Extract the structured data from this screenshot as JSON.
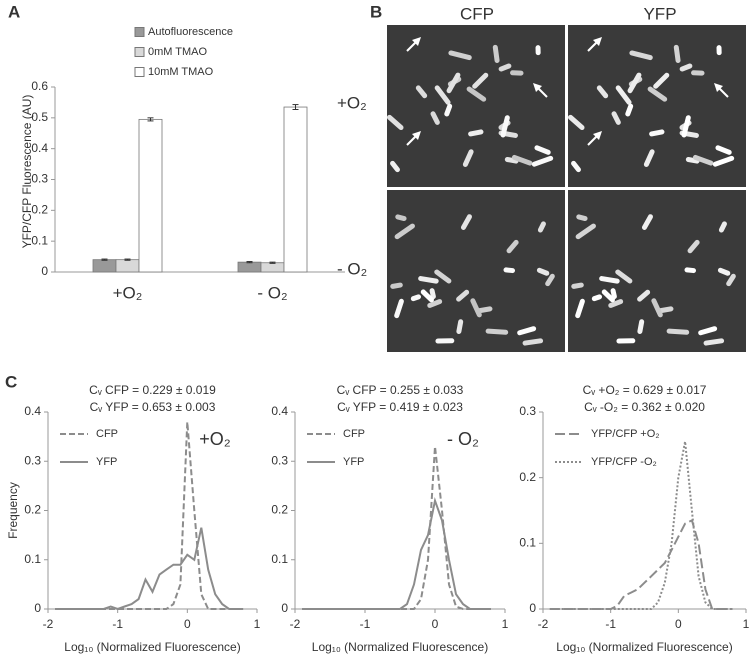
{
  "panel_labels": [
    "A",
    "B",
    "C"
  ],
  "micrographs": {
    "columns": [
      "CFP",
      "YFP"
    ],
    "rows": [
      "+O₂",
      "- O₂"
    ]
  },
  "chart_data": [
    {
      "type": "bar",
      "ylabel": "YFP/CFP Fluorescence (AU)",
      "categories": [
        "+O₂",
        "- O₂"
      ],
      "series": [
        {
          "name": "Autofluorescence",
          "color": "#999999",
          "values": [
            0.04,
            0.032
          ],
          "errors": [
            0.002,
            0.002
          ]
        },
        {
          "name": "0mM TMAO",
          "color": "#d9d9d9",
          "values": [
            0.04,
            0.03
          ],
          "errors": [
            0.002,
            0.002
          ]
        },
        {
          "name": "10mM TMAO",
          "color": "#ffffff",
          "values": [
            0.495,
            0.535
          ],
          "errors": [
            0.005,
            0.008
          ]
        }
      ],
      "ylim": [
        0,
        0.6
      ],
      "yticks": [
        0,
        0.1,
        0.2,
        0.3,
        0.4,
        0.5,
        0.6
      ]
    },
    {
      "type": "line",
      "annotations": [
        "Cᵥ CFP = 0.229 ± 0.019",
        "Cᵥ YFP = 0.653 ± 0.003"
      ],
      "label": "+O₂",
      "ylabel": "Frequency",
      "xlabel": "Log₁₀ (Normalized Fluorescence)",
      "x": [
        -1.9,
        -1.8,
        -1.7,
        -1.6,
        -1.5,
        -1.4,
        -1.3,
        -1.2,
        -1.1,
        -1,
        -0.9,
        -0.8,
        -0.7,
        -0.6,
        -0.5,
        -0.4,
        -0.3,
        -0.2,
        -0.1,
        0,
        0.1,
        0.2,
        0.3,
        0.4,
        0.5,
        0.6,
        0.7,
        0.8
      ],
      "series": [
        {
          "name": "CFP",
          "color": "#8c8c8c",
          "dash": "dashed",
          "values": [
            0,
            0,
            0,
            0,
            0,
            0,
            0,
            0,
            0,
            0,
            0,
            0,
            0,
            0,
            0,
            0,
            0,
            0.01,
            0.05,
            0.38,
            0.2,
            0.03,
            0,
            0,
            0,
            0,
            0,
            0
          ]
        },
        {
          "name": "YFP",
          "color": "#8c8c8c",
          "dash": "solid",
          "values": [
            0,
            0,
            0,
            0,
            0,
            0,
            0,
            0,
            0.005,
            0,
            0.005,
            0.01,
            0.02,
            0.06,
            0.035,
            0.07,
            0.08,
            0.09,
            0.09,
            0.11,
            0.1,
            0.165,
            0.08,
            0.03,
            0.01,
            0,
            0,
            0
          ]
        }
      ],
      "xlim": [
        -2,
        1
      ],
      "xticks": [
        -2,
        -1,
        0,
        1
      ],
      "ylim": [
        0,
        0.4
      ],
      "yticks": [
        0,
        0.1,
        0.2,
        0.3,
        0.4
      ]
    },
    {
      "type": "line",
      "annotations": [
        "Cᵥ CFP = 0.255 ± 0.033",
        "Cᵥ YFP = 0.419 ± 0.023"
      ],
      "label": "- O₂",
      "xlabel": "Log₁₀ (Normalized Fluorescence)",
      "x": [
        -1.9,
        -1.8,
        -1.7,
        -1.6,
        -1.5,
        -1.4,
        -1.3,
        -1.2,
        -1.1,
        -1,
        -0.9,
        -0.8,
        -0.7,
        -0.6,
        -0.5,
        -0.4,
        -0.3,
        -0.2,
        -0.1,
        0,
        0.1,
        0.2,
        0.3,
        0.4,
        0.5,
        0.6,
        0.7,
        0.8
      ],
      "series": [
        {
          "name": "CFP",
          "color": "#8c8c8c",
          "dash": "dashed",
          "values": [
            0,
            0,
            0,
            0,
            0,
            0,
            0,
            0,
            0,
            0,
            0,
            0,
            0,
            0,
            0,
            0,
            0,
            0.02,
            0.1,
            0.33,
            0.2,
            0.05,
            0.005,
            0,
            0,
            0,
            0,
            0
          ]
        },
        {
          "name": "YFP",
          "color": "#8c8c8c",
          "dash": "solid",
          "values": [
            0,
            0,
            0,
            0,
            0,
            0,
            0,
            0,
            0,
            0,
            0,
            0,
            0,
            0,
            0,
            0.01,
            0.05,
            0.12,
            0.15,
            0.22,
            0.18,
            0.1,
            0.03,
            0.01,
            0,
            0,
            0,
            0
          ]
        }
      ],
      "xlim": [
        -2,
        1
      ],
      "xticks": [
        -2,
        -1,
        0,
        1
      ],
      "ylim": [
        0,
        0.4
      ],
      "yticks": [
        0,
        0.1,
        0.2,
        0.3,
        0.4
      ]
    },
    {
      "type": "line",
      "annotations": [
        "Cᵥ +O₂ = 0.629 ± 0.017",
        "Cᵥ -O₂ = 0.362 ± 0.020"
      ],
      "xlabel": "Log₁₀ (Normalized Fluorescence)",
      "x": [
        -1.9,
        -1.8,
        -1.7,
        -1.6,
        -1.5,
        -1.4,
        -1.3,
        -1.2,
        -1.1,
        -1,
        -0.9,
        -0.8,
        -0.7,
        -0.6,
        -0.5,
        -0.4,
        -0.3,
        -0.2,
        -0.1,
        0,
        0.1,
        0.2,
        0.3,
        0.4,
        0.5,
        0.6,
        0.7,
        0.8
      ],
      "series": [
        {
          "name": "YFP/CFP +O₂",
          "color": "#8c8c8c",
          "dash": "longdash",
          "values": [
            0,
            0,
            0,
            0,
            0,
            0,
            0,
            0,
            0,
            0,
            0.005,
            0.02,
            0.025,
            0.03,
            0.04,
            0.05,
            0.06,
            0.07,
            0.09,
            0.11,
            0.13,
            0.135,
            0.1,
            0.03,
            0,
            0,
            0,
            0
          ]
        },
        {
          "name": "YFP/CFP -O₂",
          "color": "#8c8c8c",
          "dash": "dotted",
          "values": [
            0,
            0,
            0,
            0,
            0,
            0,
            0,
            0,
            0,
            0,
            0,
            0,
            0,
            0,
            0,
            0,
            0.01,
            0.04,
            0.1,
            0.2,
            0.255,
            0.15,
            0.05,
            0.01,
            0,
            0,
            0,
            0
          ]
        }
      ],
      "xlim": [
        -2,
        1
      ],
      "xticks": [
        -2,
        -1,
        0,
        1
      ],
      "ylim": [
        0,
        0.3
      ],
      "yticks": [
        0,
        0.1,
        0.2,
        0.3
      ]
    }
  ]
}
